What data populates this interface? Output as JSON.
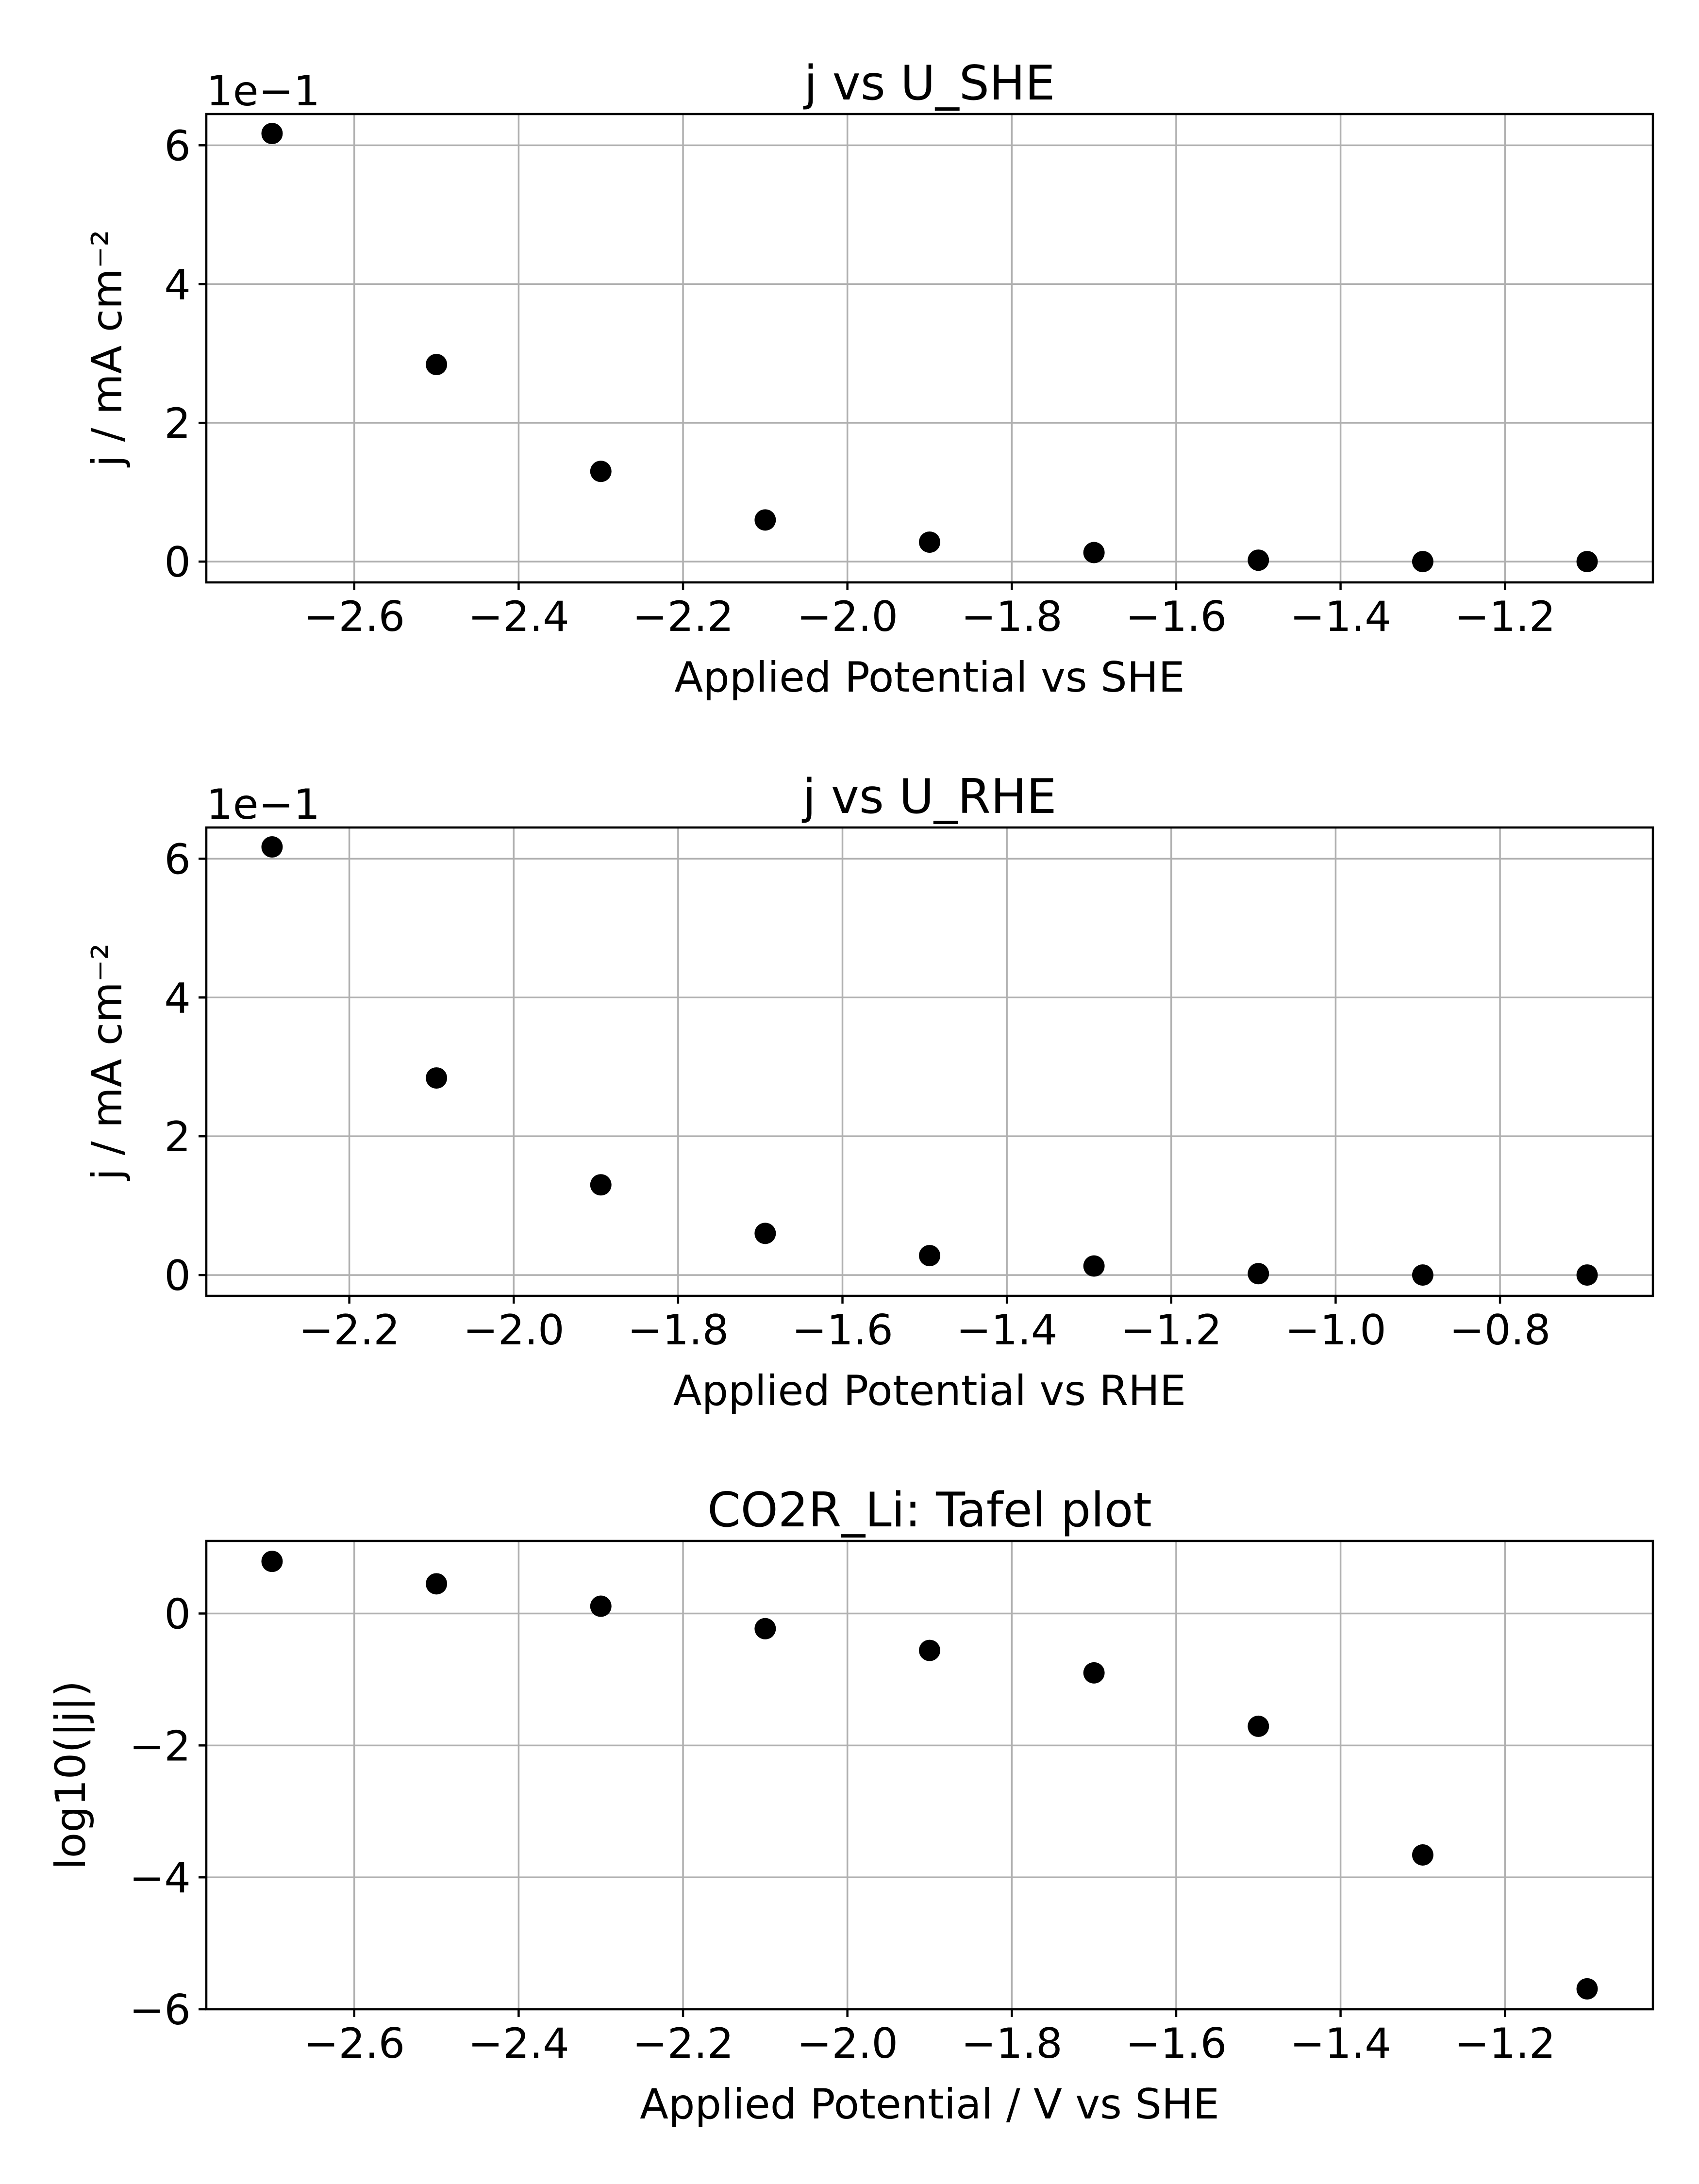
{
  "chart_data": [
    {
      "type": "scatter",
      "title": "j vs U_SHE",
      "xlabel": "Applied Potential vs SHE",
      "ylabel": "j / mA cm⁻²",
      "offset_text": "1e−1",
      "xlim": [
        -2.78,
        -1.02
      ],
      "ylim": [
        -0.3,
        6.45
      ],
      "xticks": [
        -2.6,
        -2.4,
        -2.2,
        -2.0,
        -1.8,
        -1.6,
        -1.4,
        -1.2
      ],
      "xtick_labels": [
        "−2.6",
        "−2.4",
        "−2.2",
        "−2.0",
        "−1.8",
        "−1.6",
        "−1.4",
        "−1.2"
      ],
      "yticks": [
        0,
        2,
        4,
        6
      ],
      "ytick_labels": [
        "0",
        "2",
        "4",
        "6"
      ],
      "grid": true,
      "x": [
        -2.7,
        -2.5,
        -2.3,
        -2.1,
        -1.9,
        -1.7,
        -1.5,
        -1.3,
        -1.1
      ],
      "y": [
        6.17,
        2.84,
        1.3,
        0.6,
        0.28,
        0.13,
        0.02,
        0.0,
        0.0
      ]
    },
    {
      "type": "scatter",
      "title": "j vs U_RHE",
      "xlabel": "Applied Potential vs RHE",
      "ylabel": "j / mA cm⁻²",
      "offset_text": "1e−1",
      "xlim": [
        -2.374,
        -0.614
      ],
      "ylim": [
        -0.3,
        6.45
      ],
      "xticks": [
        -2.2,
        -2.0,
        -1.8,
        -1.6,
        -1.4,
        -1.2,
        -1.0,
        -0.8
      ],
      "xtick_labels": [
        "−2.2",
        "−2.0",
        "−1.8",
        "−1.6",
        "−1.4",
        "−1.2",
        "−1.0",
        "−0.8"
      ],
      "yticks": [
        0,
        2,
        4,
        6
      ],
      "ytick_labels": [
        "0",
        "2",
        "4",
        "6"
      ],
      "grid": true,
      "x": [
        -2.294,
        -2.094,
        -1.894,
        -1.694,
        -1.494,
        -1.294,
        -1.094,
        -0.894,
        -0.694
      ],
      "y": [
        6.17,
        2.84,
        1.3,
        0.6,
        0.28,
        0.13,
        0.02,
        0.0,
        0.0
      ]
    },
    {
      "type": "scatter",
      "title": "CO2R_Li: Tafel plot",
      "xlabel": "Applied Potential / V vs SHE",
      "ylabel": "log10(|j|)",
      "offset_text": "",
      "xlim": [
        -2.78,
        -1.02
      ],
      "ylim": [
        -6.0,
        1.1
      ],
      "xticks": [
        -2.6,
        -2.4,
        -2.2,
        -2.0,
        -1.8,
        -1.6,
        -1.4,
        -1.2
      ],
      "xtick_labels": [
        "−2.6",
        "−2.4",
        "−2.2",
        "−2.0",
        "−1.8",
        "−1.6",
        "−1.4",
        "−1.2"
      ],
      "yticks": [
        0,
        -2,
        -4,
        -6
      ],
      "ytick_labels": [
        "0",
        "−2",
        "−4",
        "−6"
      ],
      "grid": true,
      "x": [
        -2.7,
        -2.5,
        -2.3,
        -2.1,
        -1.9,
        -1.7,
        -1.5,
        -1.3,
        -1.1
      ],
      "y": [
        0.79,
        0.45,
        0.11,
        -0.23,
        -0.56,
        -0.9,
        -1.71,
        -3.66,
        -5.69
      ]
    }
  ]
}
